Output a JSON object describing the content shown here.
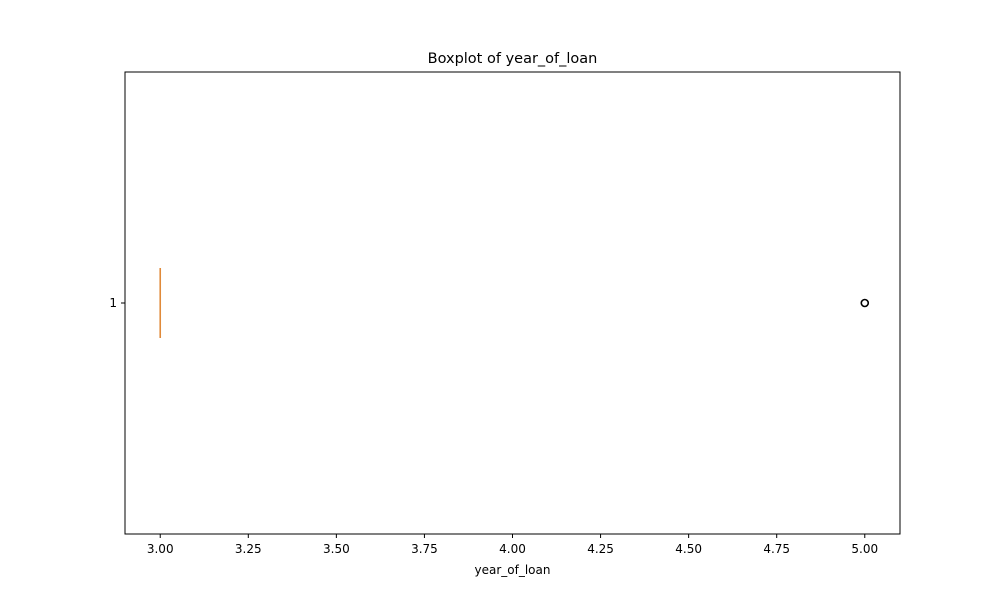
{
  "chart_data": {
    "type": "boxplot",
    "title": "Boxplot of year_of_loan",
    "xlabel": "year_of_loan",
    "ylabel": "",
    "orientation": "horizontal",
    "xlim": [
      2.9,
      5.1
    ],
    "x_ticks": [
      3.0,
      3.25,
      3.5,
      3.75,
      4.0,
      4.25,
      4.5,
      4.75,
      5.0
    ],
    "x_tick_labels": [
      "3.00",
      "3.25",
      "3.50",
      "3.75",
      "4.00",
      "4.25",
      "4.50",
      "4.75",
      "5.00"
    ],
    "y_ticks": [
      1
    ],
    "y_tick_labels": [
      "1"
    ],
    "grid": false,
    "series": [
      {
        "position": 1,
        "whisker_low": 3.0,
        "q1": 3.0,
        "median": 3.0,
        "q3": 3.0,
        "whisker_high": 3.0,
        "outliers": [
          5.0
        ]
      }
    ],
    "colors": {
      "median": "#e08a3a",
      "box": "#000000",
      "outlier_edge": "#000000"
    }
  }
}
